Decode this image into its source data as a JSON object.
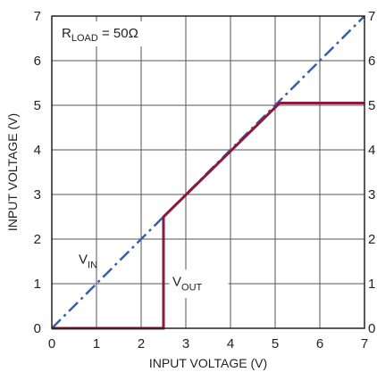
{
  "chart_data": {
    "type": "line",
    "xlabel": "INPUT VOLTAGE (V)",
    "ylabel": "INPUT VOLTAGE (V)",
    "xlim": [
      0,
      7
    ],
    "ylim": [
      0,
      7
    ],
    "xticks": [
      "0",
      "1",
      "2",
      "3",
      "4",
      "5",
      "6",
      "7"
    ],
    "yticks": [
      "0",
      "1",
      "2",
      "3",
      "4",
      "5",
      "6",
      "7"
    ],
    "grid": true,
    "right_axis_ticks": [
      "0",
      "1",
      "2",
      "3",
      "4",
      "5",
      "6",
      "7"
    ],
    "annotations": {
      "rload": {
        "main": "R",
        "sub": "LOAD",
        "rest": " = 50Ω"
      },
      "vin": {
        "main": "V",
        "sub": "IN"
      },
      "vout": {
        "main": "V",
        "sub": "OUT"
      }
    },
    "series": [
      {
        "id": "vin",
        "style": "dash-dot",
        "color": "#3a5fa3",
        "x": [
          0,
          7
        ],
        "y": [
          0,
          7
        ]
      },
      {
        "id": "vout",
        "style": "solid",
        "color": "#8b1a3c",
        "x": [
          0,
          2.5,
          2.5,
          5.1,
          7
        ],
        "y": [
          0,
          0,
          2.5,
          5.05,
          5.05
        ]
      }
    ]
  }
}
